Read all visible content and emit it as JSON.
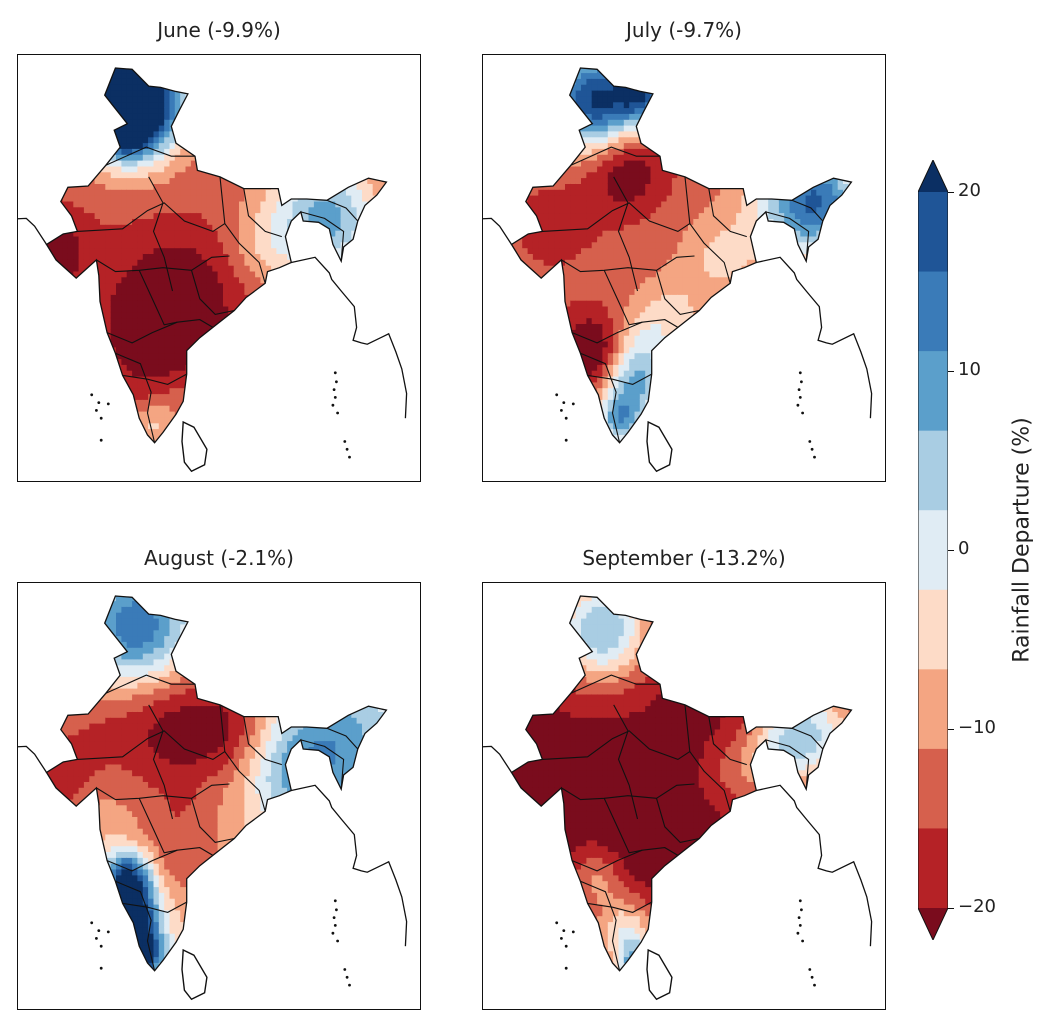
{
  "chart_data": {
    "type": "heatmap",
    "panels": [
      {
        "title": "June (-9.9%)",
        "month": "June",
        "all_india_departure": -9.9
      },
      {
        "title": "July (-9.7%)",
        "month": "July",
        "all_india_departure": -9.7
      },
      {
        "title": "August (-2.1%)",
        "month": "August",
        "all_india_departure": -2.1
      },
      {
        "title": "September (-13.2%)",
        "month": "September",
        "all_india_departure": -13.2
      }
    ],
    "colorbar": {
      "label": "Rainfall Departure (%)",
      "ticks": [
        "20",
        "10",
        "0",
        "−10",
        "−20"
      ],
      "tick_values": [
        20,
        10,
        0,
        -10,
        -20
      ],
      "levels": [
        -25,
        -20,
        -15,
        -10,
        -5,
        0,
        5,
        10,
        15,
        20,
        25
      ],
      "extend": "both",
      "colors": [
        "#7a0c1d",
        "#b52226",
        "#d6604d",
        "#f4a582",
        "#fddbc7",
        "#e0ecf4",
        "#a9cde3",
        "#5b9fcb",
        "#3a7bb8",
        "#1f5597",
        "#0b2f63"
      ],
      "cmap": "RdBu"
    }
  }
}
